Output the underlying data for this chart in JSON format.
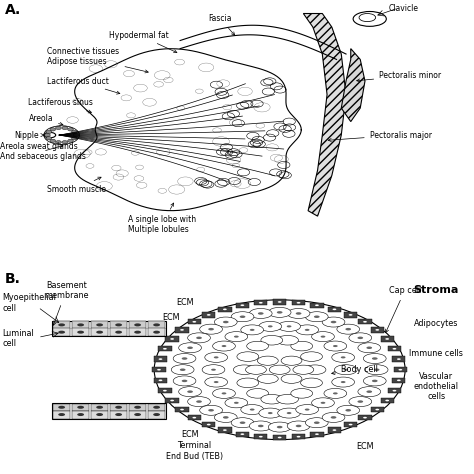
{
  "panel_a_label": "A.",
  "panel_b_label": "B.",
  "bg_color": "#ffffff",
  "line_color": "#000000",
  "stroma_title": "Stroma",
  "stroma_items": [
    "Adipocytes",
    "Immune cells",
    "Vascular\nendothelial\ncells"
  ],
  "teb_label": "Terminal\nEnd Bud (TEB)",
  "basement_membrane_label": "Basement\nmembrane",
  "myoepithelial_label": "Myoepithelial\ncell",
  "luminal_label": "Luminal\ncell",
  "cap_cell_label": "Cap cell",
  "body_cell_label": "Body cell",
  "fascia_label": "Fascia",
  "clavicle_label": "Clavicle",
  "hypodermal_label": "Hypodermal fat",
  "connective_label": "Connective tissues\nAdipose tissues",
  "pect_minor_label": "Pectoralis minor",
  "pect_major_label": "Pectoralis major",
  "lact_duct_label": "Lactiferous duct",
  "lact_sinus_label": "Lactiferous sinus",
  "areola_label": "Areola",
  "nipple_label": "Nipple",
  "sweat_label": "Areola sweat glands\nAnd sebaceous glands",
  "smooth_label": "Smooth muscle",
  "lobe_label": "A single lobe with\nMultiple lobules"
}
